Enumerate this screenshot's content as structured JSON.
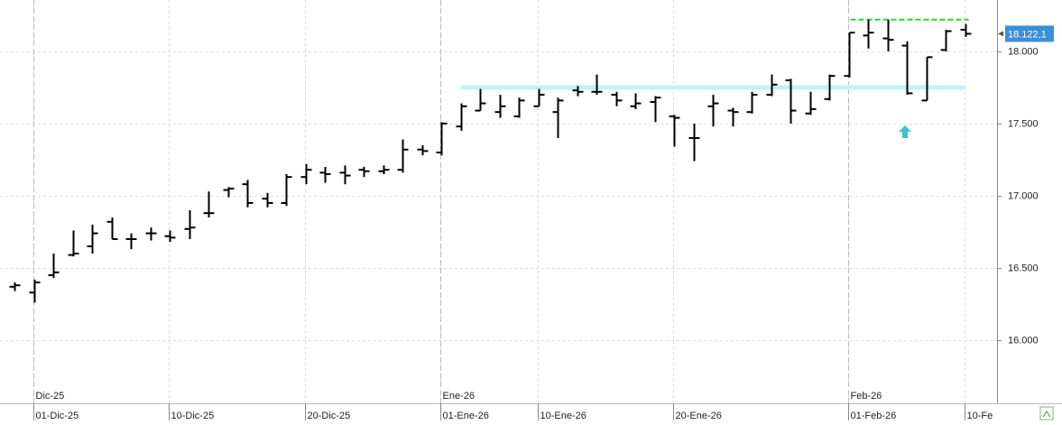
{
  "chart_data": {
    "type": "ohlc",
    "color": "#000000",
    "categories": [
      null,
      "01-Dic-25",
      null,
      null,
      null,
      null,
      null,
      null,
      "10-Dic-25",
      null,
      null,
      null,
      null,
      null,
      null,
      "20-Dic-25",
      null,
      null,
      null,
      null,
      null,
      null,
      "01-Ene-26",
      null,
      null,
      null,
      null,
      "10-Ene-26",
      null,
      null,
      null,
      null,
      null,
      null,
      "20-Ene-26",
      null,
      null,
      null,
      null,
      null,
      null,
      null,
      null,
      "01-Feb-26",
      null,
      null,
      null,
      null,
      null,
      "10-Fe"
    ],
    "month_categories": [
      null,
      "Dic-25",
      null,
      null,
      null,
      null,
      null,
      null,
      null,
      null,
      null,
      null,
      null,
      null,
      null,
      null,
      null,
      null,
      null,
      null,
      null,
      null,
      "Ene-26",
      null,
      null,
      null,
      null,
      null,
      null,
      null,
      null,
      null,
      null,
      null,
      null,
      null,
      null,
      null,
      null,
      null,
      null,
      null,
      null,
      "Feb-26",
      null,
      null,
      null,
      null,
      null,
      null
    ],
    "open": [
      16370,
      16330,
      16450,
      16590,
      16650,
      16820,
      16700,
      16740,
      16720,
      16770,
      16880,
      17040,
      17080,
      16980,
      16950,
      17130,
      17160,
      17160,
      17180,
      17170,
      17180,
      17320,
      17300,
      17480,
      17590,
      17580,
      17550,
      17620,
      17580,
      17730,
      17720,
      17700,
      17620,
      17650,
      17550,
      17400,
      17620,
      17590,
      17580,
      17700,
      17800,
      17570,
      17670,
      17830,
      18110,
      18090,
      18040,
      17660,
      18010,
      18150
    ],
    "high": [
      16400,
      16420,
      16600,
      16760,
      16800,
      16850,
      16740,
      16780,
      16760,
      16900,
      17030,
      17060,
      17110,
      17020,
      17150,
      17220,
      17200,
      17210,
      17200,
      17210,
      17390,
      17350,
      17510,
      17640,
      17740,
      17700,
      17680,
      17740,
      17680,
      17760,
      17840,
      17720,
      17710,
      17690,
      17560,
      17500,
      17700,
      17610,
      17720,
      17840,
      17810,
      17720,
      17840,
      18130,
      18220,
      18220,
      18070,
      17960,
      18150,
      18190
    ],
    "low": [
      16340,
      16260,
      16430,
      16580,
      16600,
      16700,
      16630,
      16690,
      16680,
      16700,
      16850,
      16990,
      16920,
      16920,
      16930,
      17080,
      17090,
      17080,
      17130,
      17150,
      17160,
      17280,
      17280,
      17450,
      17590,
      17540,
      17540,
      17620,
      17400,
      17690,
      17700,
      17620,
      17600,
      17510,
      17340,
      17240,
      17480,
      17480,
      17570,
      17690,
      17500,
      17560,
      17660,
      17820,
      18020,
      18000,
      17700,
      17660,
      18000,
      18100
    ],
    "close": [
      16380,
      16400,
      16470,
      16600,
      16740,
      16700,
      16700,
      16740,
      16710,
      16780,
      16880,
      17050,
      16950,
      16950,
      17130,
      17180,
      17150,
      17140,
      17170,
      17180,
      17320,
      17310,
      17500,
      17620,
      17640,
      17620,
      17660,
      17700,
      17660,
      17720,
      17720,
      17660,
      17640,
      17680,
      17540,
      17400,
      17640,
      17580,
      17700,
      17770,
      17590,
      17600,
      17830,
      18130,
      18130,
      18080,
      17710,
      17960,
      18140,
      18122.1
    ],
    "ylim": [
      15562.5,
      18356
    ],
    "yticks": [
      {
        "value": 16000,
        "label": "16.000"
      },
      {
        "value": 16500,
        "label": "16.500"
      },
      {
        "value": 17000,
        "label": "17.000"
      },
      {
        "value": 17500,
        "label": "17.500"
      },
      {
        "value": 18000,
        "label": "18.000"
      }
    ],
    "last_price": {
      "value": 18122.1,
      "label": "18.122,1",
      "color": "#3a8fd8"
    },
    "resistance": {
      "value": 18220,
      "color": "#22dd22"
    },
    "support": {
      "value": 17750,
      "color": "#bff3f5"
    },
    "grid": true
  }
}
